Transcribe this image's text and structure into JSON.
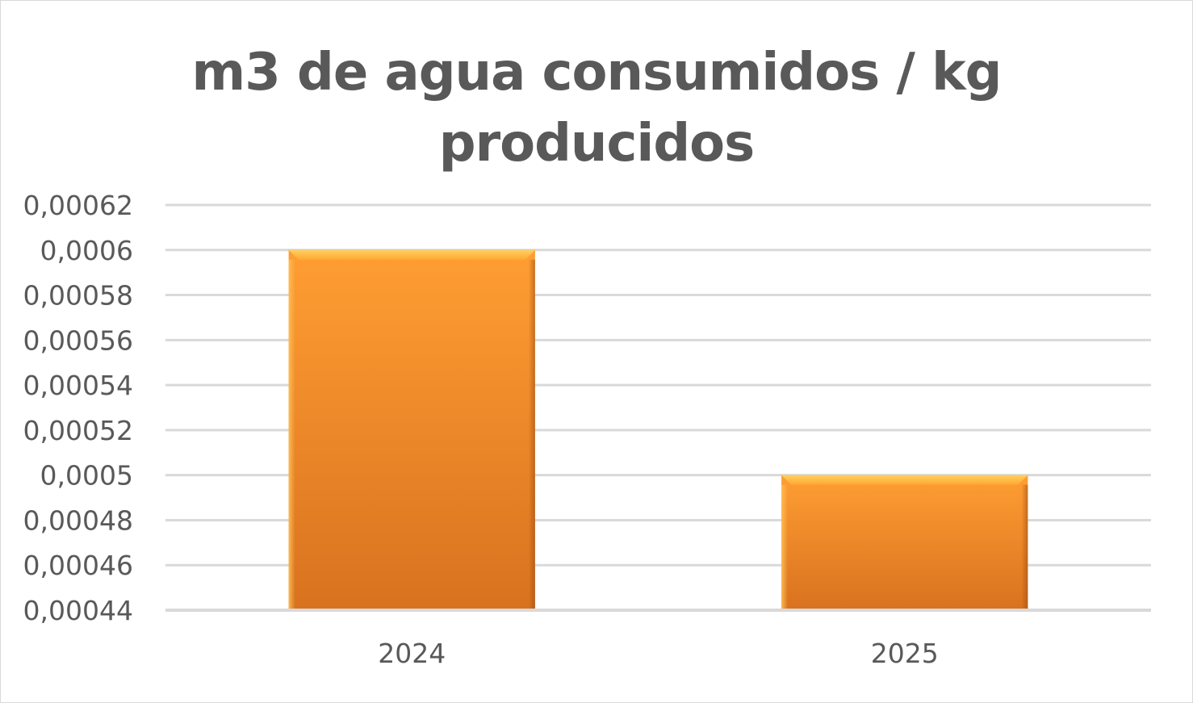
{
  "chart_data": {
    "type": "bar",
    "title_line1": "m3 de agua consumidos / kg",
    "title_line2": "producidos",
    "categories": [
      "2024",
      "2025"
    ],
    "values": [
      0.0006,
      0.0005
    ],
    "ylim": [
      0.00044,
      0.00062
    ],
    "yticks": [
      0.00044,
      0.00046,
      0.00048,
      0.0005,
      0.00052,
      0.00054,
      0.00056,
      0.00058,
      0.0006,
      0.00062
    ],
    "ytick_labels": [
      "0,00044",
      "0,00046",
      "0,00048",
      "0,0005",
      "0,00052",
      "0,00054",
      "0,00056",
      "0,00058",
      "0,0006",
      "0,00062"
    ],
    "grid": true,
    "bar_color_top": "#ff9e33",
    "bar_color_bottom": "#d9721f",
    "grid_color": "#d9d9d9",
    "text_color": "#595959"
  }
}
